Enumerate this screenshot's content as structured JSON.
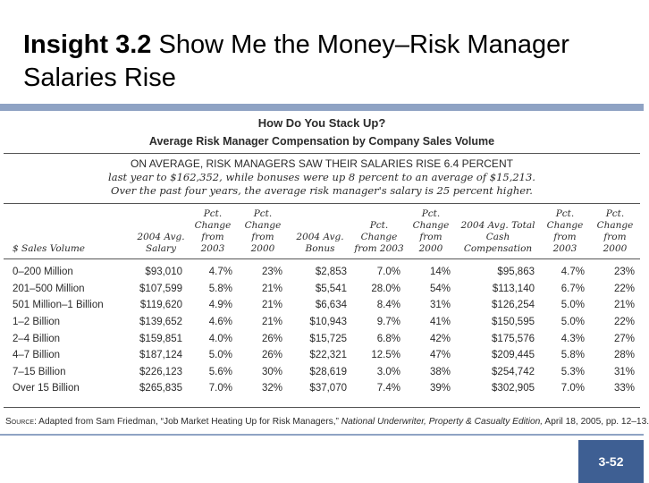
{
  "slide": {
    "title_bold": "Insight 3.2",
    "title_rest": " Show Me the Money–Risk Manager Salaries Rise",
    "page_number": "3-52"
  },
  "figure": {
    "heading": "How Do You Stack Up?",
    "subheading": "Average Risk Manager Compensation by Company Sales Volume",
    "summary_caps": "ON AVERAGE, RISK MANAGERS SAW THEIR SALARIES RISE 6.4 PERCENT",
    "summary_line2": "last year to $162,352, while bonuses were up 8 percent to an average of $15,213.",
    "summary_line3": "Over the past four years, the average risk manager's salary is 25 percent higher.",
    "columns": [
      "$ Sales Volume",
      "2004 Avg. Salary",
      "Pct. Change from 2003",
      "Pct. Change from 2000",
      "2004 Avg. Bonus",
      "Pct. Change from 2003",
      "Pct. Change from 2000",
      "2004 Avg. Total Cash Compensation",
      "Pct. Change from 2003",
      "Pct. Change from 2000"
    ],
    "rows": [
      [
        "0–200 Million",
        "$93,010",
        "4.7%",
        "23%",
        "$2,853",
        "7.0%",
        "14%",
        "$95,863",
        "4.7%",
        "23%"
      ],
      [
        "201–500 Million",
        "$107,599",
        "5.8%",
        "21%",
        "$5,541",
        "28.0%",
        "54%",
        "$113,140",
        "6.7%",
        "22%"
      ],
      [
        "501 Million–1 Billion",
        "$119,620",
        "4.9%",
        "21%",
        "$6,634",
        "8.4%",
        "31%",
        "$126,254",
        "5.0%",
        "21%"
      ],
      [
        "1–2 Billion",
        "$139,652",
        "4.6%",
        "21%",
        "$10,943",
        "9.7%",
        "41%",
        "$150,595",
        "5.0%",
        "22%"
      ],
      [
        "2–4 Billion",
        "$159,851",
        "4.0%",
        "26%",
        "$15,725",
        "6.8%",
        "42%",
        "$175,576",
        "4.3%",
        "27%"
      ],
      [
        "4–7 Billion",
        "$187,124",
        "5.0%",
        "26%",
        "$22,321",
        "12.5%",
        "47%",
        "$209,445",
        "5.8%",
        "28%"
      ],
      [
        "7–15 Billion",
        "$226,123",
        "5.6%",
        "30%",
        "$28,619",
        "3.0%",
        "38%",
        "$254,742",
        "5.3%",
        "31%"
      ],
      [
        "Over 15 Billion",
        "$265,835",
        "7.0%",
        "32%",
        "$37,070",
        "7.4%",
        "39%",
        "$302,905",
        "7.0%",
        "33%"
      ]
    ],
    "source_label": "Source:",
    "source_pre": " Adapted from Sam Friedman, “Job Market Heating Up for Risk Managers,” ",
    "source_pub": "National Underwriter, Property & Casualty Edition,",
    "source_post": " April 18, 2005, pp. 12–13."
  }
}
